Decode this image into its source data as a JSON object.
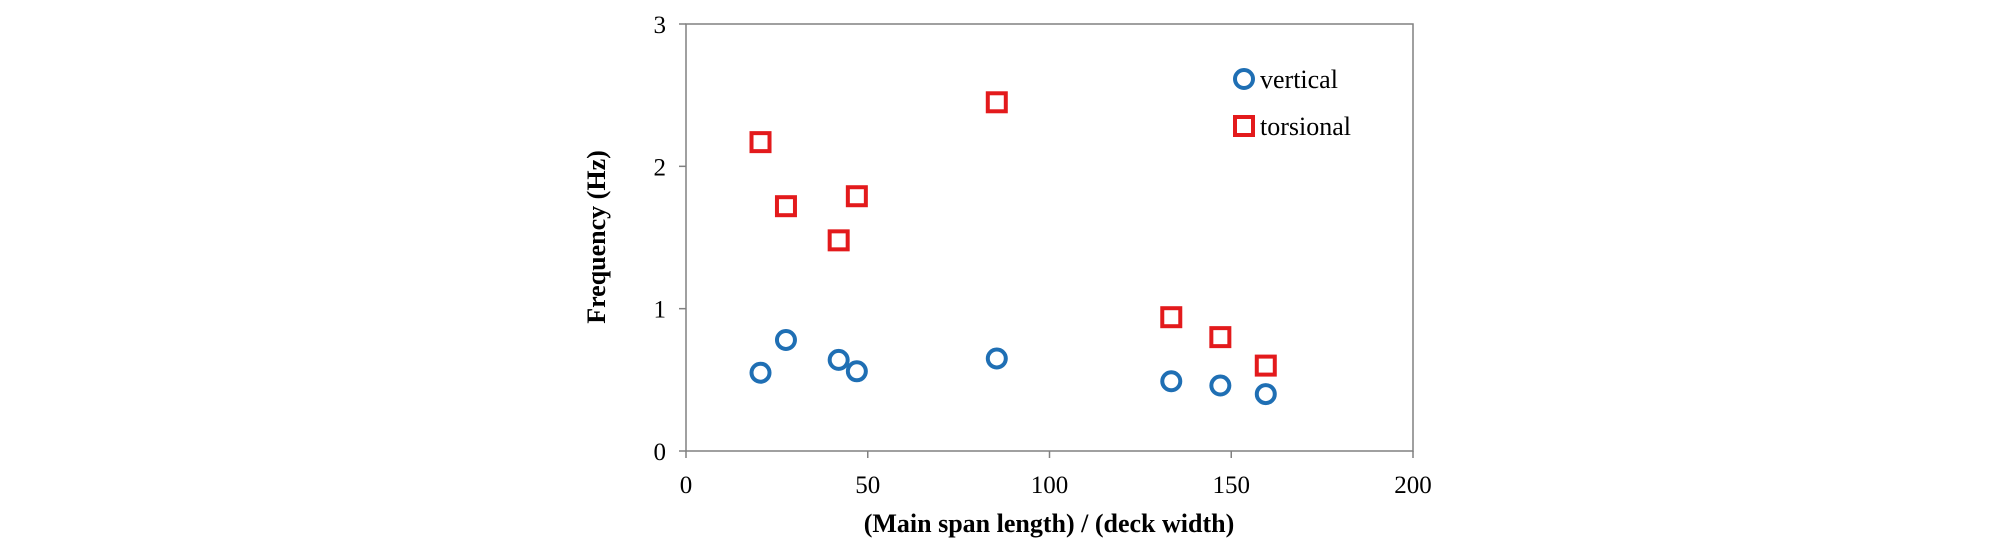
{
  "chart_data": {
    "type": "scatter",
    "title": "",
    "xlabel": "(Main span length) / (deck width)",
    "ylabel": "Frequency (Hz)",
    "xlim": [
      0,
      200
    ],
    "ylim": [
      0,
      3
    ],
    "xticks": [
      0,
      50,
      100,
      150,
      200
    ],
    "yticks": [
      0,
      1,
      2,
      3
    ],
    "grid": false,
    "legend_position": "top-right",
    "series": [
      {
        "name": "vertical",
        "marker": "circle",
        "color": "#1F6FB4",
        "x": [
          20.5,
          27.5,
          42,
          47,
          85.5,
          133.5,
          147,
          159.5
        ],
        "y": [
          0.55,
          0.78,
          0.64,
          0.56,
          0.65,
          0.49,
          0.46,
          0.4
        ]
      },
      {
        "name": "torsional",
        "marker": "square",
        "color": "#E31A1C",
        "x": [
          20.5,
          27.5,
          42,
          47,
          85.5,
          133.5,
          147,
          159.5
        ],
        "y": [
          2.17,
          1.72,
          1.48,
          1.79,
          2.45,
          0.94,
          0.8,
          0.6
        ]
      }
    ]
  }
}
